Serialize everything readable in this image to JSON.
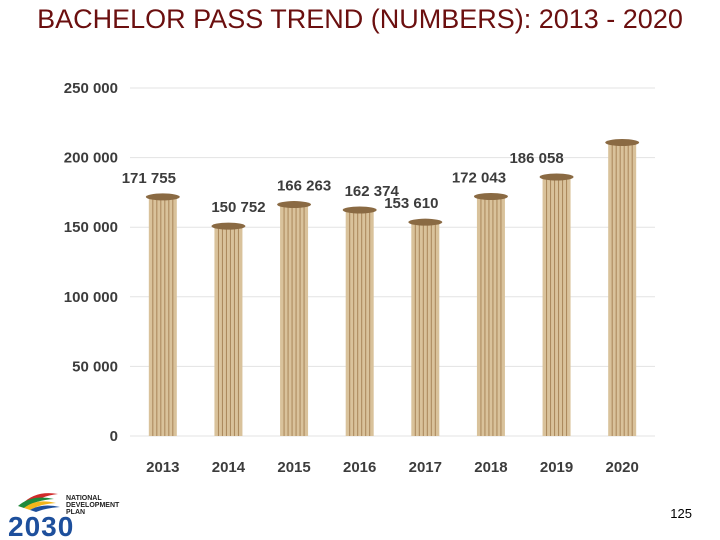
{
  "title": "BACHELOR PASS TREND (NUMBERS): 2013 - 2020",
  "page_number": "125",
  "logo": {
    "line1": "NATIONAL",
    "line2": "DEVELOPMENT",
    "line3": "PLAN",
    "year": "2030"
  },
  "colors": {
    "bar": "#d9c29b",
    "bar_dark": "#a9865a",
    "bar_cap": "#8a6a43",
    "title": "#6b0f0f"
  },
  "chart_data": {
    "type": "bar",
    "title": "BACHELOR PASS TREND (NUMBERS): 2013 - 2020",
    "categories": [
      "2013",
      "2014",
      "2015",
      "2016",
      "2017",
      "2018",
      "2019",
      "2020"
    ],
    "values": [
      171755,
      150752,
      166263,
      162374,
      153610,
      172043,
      186058,
      210820
    ],
    "data_labels": [
      "171 755",
      "150 752",
      "166 263",
      "162 374",
      "153 610",
      "172 043",
      "186 058",
      ""
    ],
    "yticks": [
      0,
      50000,
      100000,
      150000,
      200000,
      250000
    ],
    "ytick_labels": [
      "0",
      "50 000",
      "100 000",
      "150 000",
      "200 000",
      "250 000"
    ],
    "ylim": [
      0,
      250000
    ],
    "xlabel": "",
    "ylabel": "",
    "grid": true,
    "legend": "none"
  }
}
